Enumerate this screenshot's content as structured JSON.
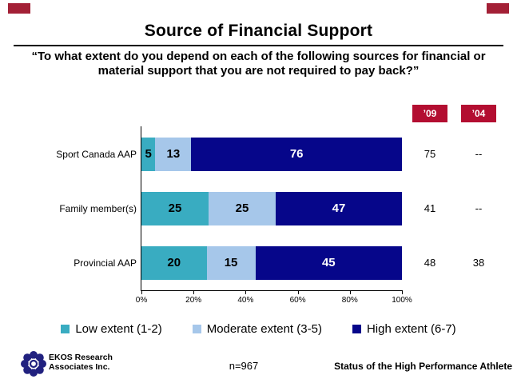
{
  "header": {
    "title": "Source of Financial Support",
    "subtitle_line1": "“To what extent do you depend on each of the following sources for financial or",
    "subtitle_line2": "material support that you are not required to pay back?”"
  },
  "chart_data": {
    "type": "bar",
    "orientation": "horizontal_stacked",
    "title": "Source of Financial Support",
    "question": "“To what extent do you depend on each of the following sources for financial or material support that you are not required to pay back?”",
    "categories": [
      "Sport Canada AAP",
      "Family member(s)",
      "Provincial AAP"
    ],
    "series": [
      {
        "name": "Low extent (1-2)",
        "color": "#39ACC1",
        "label_color": "#000000",
        "values": [
          5,
          25,
          20
        ]
      },
      {
        "name": "Moderate extent (3-5)",
        "color": "#A6C7EA",
        "label_color": "#000000",
        "values": [
          13,
          25,
          15
        ]
      },
      {
        "name": "High extent (6-7)",
        "color": "#06068A",
        "label_color": "#FFFFFF",
        "values": [
          76,
          47,
          45
        ]
      }
    ],
    "x_axis": {
      "tick_labels": [
        "0%",
        "20%",
        "40%",
        "60%",
        "80%",
        "100%"
      ],
      "range": [
        0,
        100
      ]
    },
    "legend_position": "bottom",
    "segments_normalized_to_full_bar": true,
    "comparison_table": {
      "header_bg": "#B30E31",
      "headers": [
        "’09",
        "’04"
      ],
      "rows": [
        {
          "category": "Sport Canada AAP",
          "y09": "75",
          "y04": "--"
        },
        {
          "category": "Family member(s)",
          "y09": "41",
          "y04": "--"
        },
        {
          "category": "Provincial AAP",
          "y09": "48",
          "y04": "38"
        }
      ]
    }
  },
  "colors": {
    "bar_low_extent": "#39ACC1",
    "bar_moderate_extent": "#A6C7EA",
    "bar_high_extent": "#06068A",
    "header_box_red": "#B30E31",
    "corner_mark_red": "#A32036",
    "logo_blue": "#21217F"
  },
  "footer": {
    "org_line1": "EKOS Research",
    "org_line2": "Associates Inc.",
    "sample_size": "n=967",
    "report_title": "Status of the High Performance Athlete"
  }
}
